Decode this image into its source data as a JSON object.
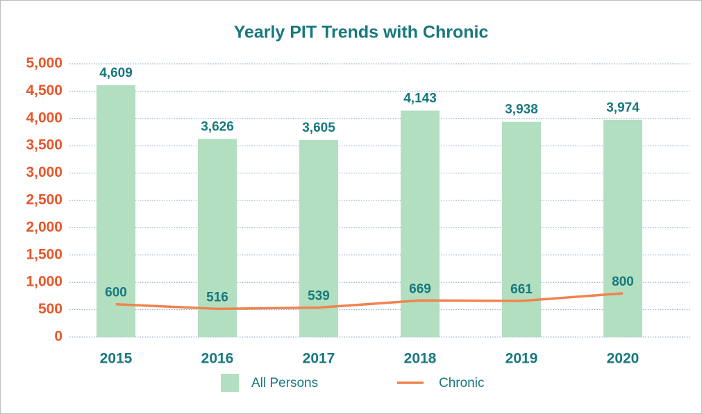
{
  "chart_data": {
    "type": "bar",
    "title": "Yearly PIT Trends with Chronic",
    "categories": [
      "2015",
      "2016",
      "2017",
      "2018",
      "2019",
      "2020"
    ],
    "series": [
      {
        "name": "All Persons",
        "type": "bar",
        "color": "#b2dfc0",
        "values": [
          4609,
          3626,
          3605,
          4143,
          3938,
          3974
        ],
        "value_labels": [
          "4,609",
          "3,626",
          "3,605",
          "4,143",
          "3,938",
          "3,974"
        ]
      },
      {
        "name": "Chronic",
        "type": "line",
        "color": "#f0834f",
        "values": [
          600,
          516,
          539,
          669,
          661,
          800
        ]
      }
    ],
    "ylim": [
      0,
      5000
    ],
    "yticks": [
      0,
      500,
      {
        "value": 1000,
        "label": "1,000"
      },
      {
        "value": 1500,
        "label": "1,500"
      },
      {
        "value": 2000,
        "label": "2,000"
      },
      {
        "value": 2500,
        "label": "2,500"
      },
      {
        "value": 3000,
        "label": "3,000"
      },
      {
        "value": 3500,
        "label": "3,500"
      },
      {
        "value": 4000,
        "label": "4,000"
      },
      {
        "value": 4500,
        "label": "4,500"
      },
      {
        "value": 5000,
        "label": "5,000"
      }
    ],
    "grid": true,
    "legend": "bottom"
  }
}
